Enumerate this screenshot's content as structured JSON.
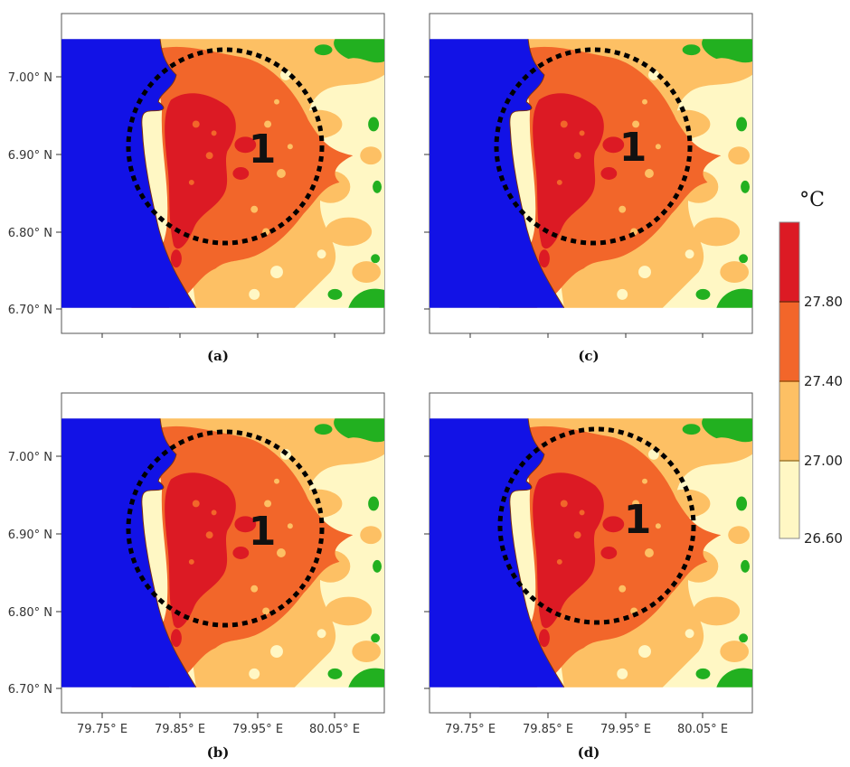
{
  "colors": {
    "sea": "#1212e6",
    "hot": "#dc1a24",
    "warm": "#f2662a",
    "mild": "#fdc064",
    "cool": "#fff7c4",
    "veg": "#22b020",
    "circle": "#000000"
  },
  "y_ticks": [
    "7.00° N",
    "6.90° N",
    "6.80° N",
    "6.70° N"
  ],
  "x_ticks": [
    "79.75° E",
    "79.85° E",
    "79.95° E",
    "80.05° E"
  ],
  "panels": [
    {
      "label": "(a)",
      "zone_label": "1",
      "hot_level": 0.85
    },
    {
      "label": "(c)",
      "zone_label": "1",
      "hot_level": 0.9
    },
    {
      "label": "(b)",
      "zone_label": "1",
      "hot_level": 0.95
    },
    {
      "label": "(d)",
      "zone_label": "1",
      "hot_level": 1.0
    }
  ],
  "colorbar": {
    "unit": "°C",
    "levels": [
      "27.80",
      "27.40",
      "27.00",
      "26.60"
    ]
  }
}
